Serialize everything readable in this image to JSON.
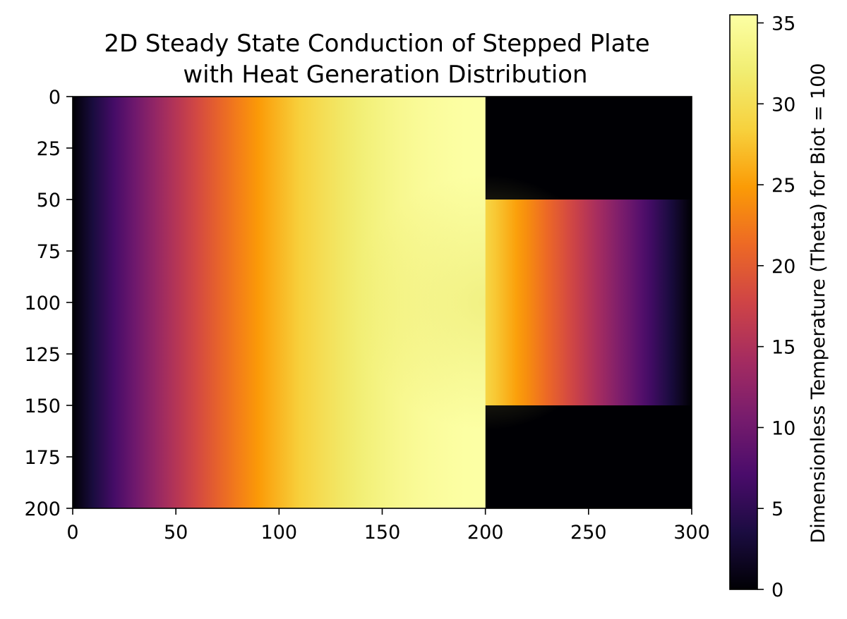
{
  "chart_data": {
    "type": "heatmap",
    "title_lines": [
      "2D Steady State Conduction of Stepped Plate",
      "with Heat Generation Distribution"
    ],
    "xlabel": "",
    "ylabel": "",
    "colormap": "inferno",
    "x_range": [
      0,
      300
    ],
    "y_range": [
      0,
      200
    ],
    "y_inverted": true,
    "x_ticks": [
      "0",
      "50",
      "100",
      "150",
      "200",
      "250",
      "300"
    ],
    "y_ticks": [
      "0",
      "25",
      "50",
      "75",
      "100",
      "125",
      "150",
      "175",
      "200"
    ],
    "colorbar": {
      "label": "Dimensionless Temperature (Theta) for Biot = 100",
      "range": [
        0,
        35.5
      ],
      "ticks": [
        "0",
        "5",
        "10",
        "15",
        "20",
        "25",
        "30",
        "35"
      ]
    },
    "regions": [
      {
        "name": "wide section",
        "x": [
          0,
          200
        ],
        "y": [
          0,
          200
        ],
        "theta_at_x0": 0,
        "theta_at_x200": 35.5
      },
      {
        "name": "narrow step",
        "x": [
          200,
          300
        ],
        "y": [
          50,
          150
        ],
        "theta_at_x200": 29,
        "theta_at_x300": 0
      },
      {
        "name": "empty upper",
        "x": [
          200,
          300
        ],
        "y": [
          0,
          50
        ],
        "theta": 0
      },
      {
        "name": "empty lower",
        "x": [
          200,
          300
        ],
        "y": [
          150,
          200
        ],
        "theta": 0
      }
    ]
  }
}
